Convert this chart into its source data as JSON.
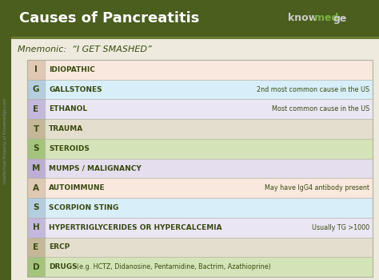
{
  "title": "Causes of Pancreatitis",
  "mnemonic": "Mnemonic:  “I GET SMASHED”",
  "bg_color": "#eeeade",
  "header_color": "#4b5e1e",
  "rows": [
    {
      "letter": "I",
      "text": "IDIOPATHIC",
      "note": "",
      "note_inline": false,
      "row_bg": "#f8e8de",
      "letter_bg": "#dfc8b4"
    },
    {
      "letter": "G",
      "text": "GALLSTONES",
      "note": "2nd most common cause in the US",
      "note_inline": false,
      "row_bg": "#d8eef8",
      "letter_bg": "#b4cedf"
    },
    {
      "letter": "E",
      "text": "ETHANOL",
      "note": "Most common cause in the US",
      "note_inline": false,
      "row_bg": "#eae6f4",
      "letter_bg": "#c4b8dc"
    },
    {
      "letter": "T",
      "text": "TRAUMA",
      "note": "",
      "note_inline": false,
      "row_bg": "#e4dece",
      "letter_bg": "#c4b898"
    },
    {
      "letter": "S",
      "text": "STEROIDS",
      "note": "",
      "note_inline": false,
      "row_bg": "#d4e4b8",
      "letter_bg": "#a4c47c"
    },
    {
      "letter": "M",
      "text": "MUMPS / MALIGNANCY",
      "note": "",
      "note_inline": false,
      "row_bg": "#e4deee",
      "letter_bg": "#bcaed4"
    },
    {
      "letter": "A",
      "text": "AUTOIMMUNE",
      "note": "May have IgG4 antibody present",
      "note_inline": false,
      "row_bg": "#f8e8de",
      "letter_bg": "#dfc8b4"
    },
    {
      "letter": "S",
      "text": "SCORPION STING",
      "note": "",
      "note_inline": false,
      "row_bg": "#d8eef8",
      "letter_bg": "#b4cedf"
    },
    {
      "letter": "H",
      "text": "HYPERTRIGLYCERIDES OR HYPERCALCEMIA",
      "note": "Usually TG >1000",
      "note_inline": false,
      "row_bg": "#eae6f4",
      "letter_bg": "#c4b8dc"
    },
    {
      "letter": "E",
      "text": "ERCP",
      "note": "",
      "note_inline": false,
      "row_bg": "#e4dece",
      "letter_bg": "#c4b898"
    },
    {
      "letter": "D",
      "text": "DRUGS",
      "note": "(e.g. HCTZ, Didanosine, Pentamidine, Bactrim, Azathioprine)",
      "note_inline": true,
      "row_bg": "#d4e4b8",
      "letter_bg": "#a4c47c"
    }
  ],
  "text_color": "#3a4a10",
  "border_color": "#b0b0a0",
  "left_bar_color": "#4b5e1e",
  "divider_color": "#6a7c30",
  "watermark": "Intellectual Property of Knowmedge.com"
}
